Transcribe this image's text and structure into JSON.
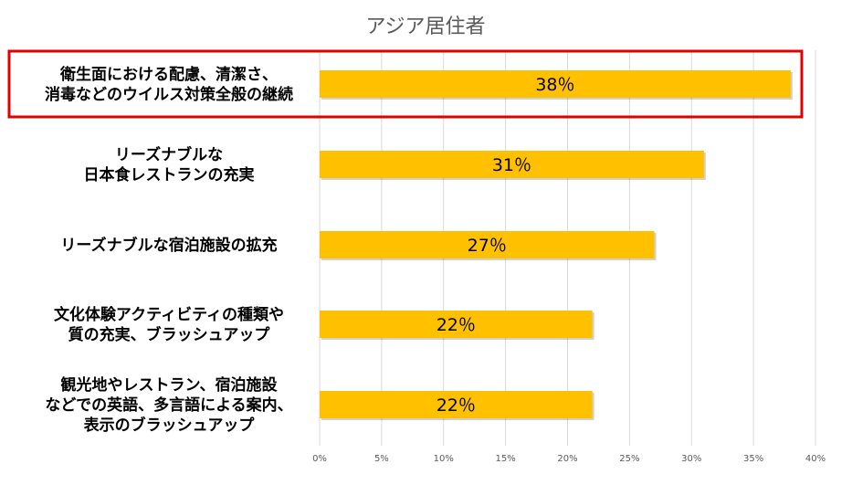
{
  "chart_data": {
    "type": "bar",
    "orientation": "horizontal",
    "title": "アジア居住者",
    "categories": [
      [
        "衛生面における配慮、清潔さ、",
        "消毒などのウイルス対策全般の継続"
      ],
      [
        "リーズナブルな",
        "日本食レストランの充実"
      ],
      [
        "リーズナブルな宿泊施設の拡充"
      ],
      [
        "文化体験アクティビティの種類や",
        "質の充実、ブラッシュアップ"
      ],
      [
        "観光地やレストラン、宿泊施設",
        "などでの英語、多言語による案内、",
        "表示のブラッシュアップ"
      ]
    ],
    "values": [
      38,
      31,
      27,
      22,
      22
    ],
    "data_labels": [
      "38％",
      "31％",
      "27％",
      "22％",
      "22％"
    ],
    "x_ticks": [
      "0%",
      "5%",
      "10%",
      "15%",
      "20%",
      "25%",
      "30%",
      "35%",
      "40%"
    ],
    "xlim": [
      0,
      40
    ],
    "grid": true,
    "highlighted_category_index": 0,
    "colors": {
      "bar": "#FFC000",
      "highlight_box": "#E00000",
      "grid": "#D9D9D9",
      "title": "#595959",
      "tick": "#595959"
    }
  }
}
